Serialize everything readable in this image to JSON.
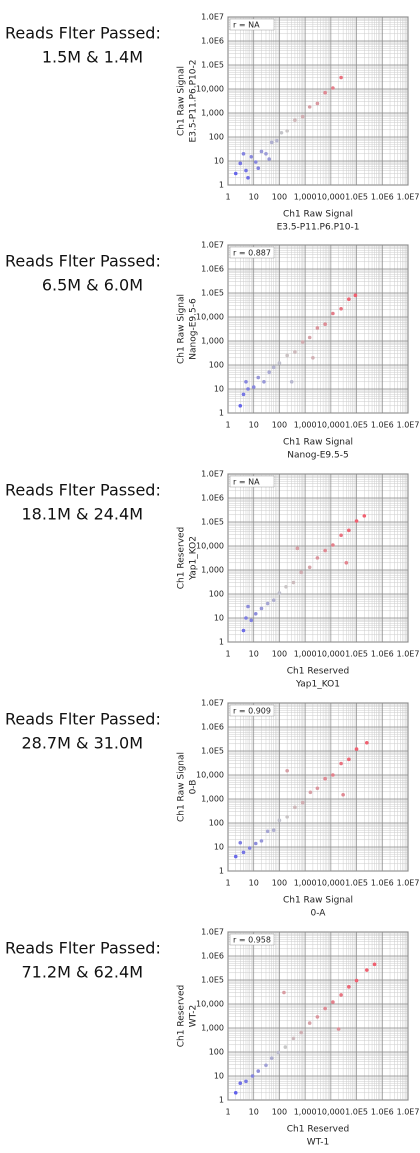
{
  "chart_data": [
    {
      "type": "scatter",
      "side_text": [
        "Reads Flter Passed:",
        "1.5M & 1.4M"
      ],
      "annotation": "r = NA",
      "xlabel": [
        "Ch1 Raw Signal",
        "E3.5-P11.P6.P10-1"
      ],
      "ylabel": [
        "Ch1 Raw Signal",
        "E3.5-P11.P6.P10-2"
      ],
      "xscale": "log",
      "yscale": "log",
      "xlim": [
        1,
        10000000
      ],
      "ylim": [
        1,
        10000000
      ],
      "xticks": [
        1,
        10,
        100,
        {
          "value": 1000,
          "label": "1,000"
        },
        {
          "value": 10000,
          "label": "10,000"
        },
        {
          "value": 100000,
          "label": "1.0E5"
        },
        {
          "value": 1000000,
          "label": "1.0E6"
        },
        {
          "value": 10000000,
          "label": "1.0E7"
        }
      ],
      "yticks": [
        1,
        10,
        100,
        {
          "value": 1000,
          "label": "1,000"
        },
        {
          "value": 10000,
          "label": "10,000"
        },
        {
          "value": 100000,
          "label": "1.0E5"
        },
        {
          "value": 1000000,
          "label": "1.0E6"
        },
        {
          "value": 10000000,
          "label": "1.0E7"
        }
      ],
      "colormap": [
        "#5050f0",
        "#c8c8c8",
        "#f06070"
      ],
      "grid": true,
      "x": [
        2,
        3,
        5,
        8,
        12,
        20,
        30,
        50,
        80,
        120,
        200,
        400,
        800,
        1500,
        3000,
        6000,
        12000,
        25000,
        4,
        15,
        6,
        40
      ],
      "y": [
        3,
        8,
        4,
        15,
        9,
        25,
        20,
        60,
        70,
        150,
        180,
        500,
        700,
        1800,
        2500,
        7000,
        11000,
        30000,
        20,
        5,
        2,
        12
      ]
    },
    {
      "type": "scatter",
      "side_text": [
        "Reads Flter Passed:",
        "6.5M & 6.0M"
      ],
      "annotation": "r = 0.887",
      "xlabel": [
        "Ch1 Raw Signal",
        "Nanog-E9.5-5"
      ],
      "ylabel": [
        "Ch1 Raw Signal",
        "Nanog-E9.5-6"
      ],
      "xscale": "log",
      "yscale": "log",
      "xlim": [
        1,
        10000000
      ],
      "ylim": [
        1,
        10000000
      ],
      "xticks": [
        1,
        10,
        100,
        {
          "value": 1000,
          "label": "1,000"
        },
        {
          "value": 10000,
          "label": "10,000"
        },
        {
          "value": 100000,
          "label": "1.0E5"
        },
        {
          "value": 1000000,
          "label": "1.0E6"
        },
        {
          "value": 10000000,
          "label": "1.0E7"
        }
      ],
      "yticks": [
        1,
        10,
        100,
        {
          "value": 1000,
          "label": "1,000"
        },
        {
          "value": 10000,
          "label": "10,000"
        },
        {
          "value": 100000,
          "label": "1.0E5"
        },
        {
          "value": 1000000,
          "label": "1.0E6"
        },
        {
          "value": 10000000,
          "label": "1.0E7"
        }
      ],
      "colormap": [
        "#5050f0",
        "#c8c8c8",
        "#f06070"
      ],
      "grid": true,
      "x": [
        3,
        4,
        6,
        10,
        15,
        25,
        40,
        60,
        100,
        200,
        400,
        800,
        1500,
        3000,
        6000,
        12000,
        25000,
        50000,
        90000,
        5,
        300,
        2000
      ],
      "y": [
        2,
        6,
        10,
        12,
        30,
        20,
        50,
        80,
        120,
        250,
        350,
        900,
        1400,
        3500,
        5000,
        14000,
        22000,
        55000,
        80000,
        20,
        20,
        200
      ]
    },
    {
      "type": "scatter",
      "side_text": [
        "Reads Flter Passed:",
        "18.1M & 24.4M"
      ],
      "annotation": "r = NA",
      "xlabel": [
        "Ch1 Reserved",
        "Yap1_KO1"
      ],
      "ylabel": [
        "Ch1 Reserved",
        "Yap1_KO2"
      ],
      "xscale": "log",
      "yscale": "log",
      "xlim": [
        1,
        10000000
      ],
      "ylim": [
        1,
        10000000
      ],
      "xticks": [
        1,
        10,
        100,
        {
          "value": 1000,
          "label": "1,000"
        },
        {
          "value": 10000,
          "label": "10,000"
        },
        {
          "value": 100000,
          "label": "1.0E5"
        },
        {
          "value": 1000000,
          "label": "1.0E6"
        },
        {
          "value": 10000000,
          "label": "1.0E7"
        }
      ],
      "yticks": [
        1,
        10,
        100,
        {
          "value": 1000,
          "label": "1,000"
        },
        {
          "value": 10000,
          "label": "10,000"
        },
        {
          "value": 100000,
          "label": "1.0E5"
        },
        {
          "value": 1000000,
          "label": "1.0E6"
        },
        {
          "value": 10000000,
          "label": "1.0E7"
        }
      ],
      "colormap": [
        "#5050f0",
        "#c8c8c8",
        "#f06070"
      ],
      "grid": true,
      "x": [
        4,
        5,
        8,
        12,
        20,
        35,
        60,
        100,
        180,
        350,
        700,
        1500,
        3000,
        6000,
        12000,
        25000,
        50000,
        100000,
        200000,
        6,
        500,
        40000
      ],
      "y": [
        3,
        10,
        8,
        15,
        25,
        40,
        55,
        110,
        200,
        300,
        800,
        1300,
        3200,
        6500,
        11000,
        28000,
        45000,
        110000,
        180000,
        30,
        8000,
        2000
      ]
    },
    {
      "type": "scatter",
      "side_text": [
        "Reads Flter Passed:",
        "28.7M & 31.0M"
      ],
      "annotation": "r = 0.909",
      "xlabel": [
        "Ch1 Raw Signal",
        "0-A"
      ],
      "ylabel": [
        "Ch1 Raw Signal",
        "0-B"
      ],
      "xscale": "log",
      "yscale": "log",
      "xlim": [
        1,
        10000000
      ],
      "ylim": [
        1,
        10000000
      ],
      "xticks": [
        1,
        10,
        100,
        {
          "value": 1000,
          "label": "1,000"
        },
        {
          "value": 10000,
          "label": "10,000"
        },
        {
          "value": 100000,
          "label": "1.0E5"
        },
        {
          "value": 1000000,
          "label": "1.0E6"
        },
        {
          "value": 10000000,
          "label": "1.0E7"
        }
      ],
      "yticks": [
        1,
        10,
        100,
        {
          "value": 1000,
          "label": "1,000"
        },
        {
          "value": 10000,
          "label": "10,000"
        },
        {
          "value": 100000,
          "label": "1.0E5"
        },
        {
          "value": 1000000,
          "label": "1.0E6"
        },
        {
          "value": 10000000,
          "label": "1.0E7"
        }
      ],
      "colormap": [
        "#5050f0",
        "#c8c8c8",
        "#f06070"
      ],
      "grid": true,
      "x": [
        2,
        4,
        7,
        12,
        20,
        35,
        60,
        100,
        200,
        400,
        800,
        1600,
        3000,
        6000,
        12000,
        25000,
        50000,
        100000,
        250000,
        3,
        200,
        30000
      ],
      "y": [
        4,
        6,
        9,
        14,
        18,
        45,
        50,
        130,
        180,
        450,
        700,
        1900,
        2800,
        7000,
        10000,
        30000,
        45000,
        120000,
        220000,
        15,
        15000,
        1500
      ]
    },
    {
      "type": "scatter",
      "side_text": [
        "Reads Flter Passed:",
        "71.2M & 62.4M"
      ],
      "annotation": "r = 0.958",
      "xlabel": [
        "Ch1 Reserved",
        "WT-1"
      ],
      "ylabel": [
        "Ch1 Reserved",
        "WT-2"
      ],
      "xscale": "log",
      "yscale": "log",
      "xlim": [
        1,
        10000000
      ],
      "ylim": [
        1,
        10000000
      ],
      "xticks": [
        1,
        10,
        100,
        {
          "value": 1000,
          "label": "1,000"
        },
        {
          "value": 10000,
          "label": "10,000"
        },
        {
          "value": 100000,
          "label": "1.0E5"
        },
        {
          "value": 1000000,
          "label": "1.0E6"
        },
        {
          "value": 10000000,
          "label": "1.0E7"
        }
      ],
      "yticks": [
        1,
        10,
        100,
        {
          "value": 1000,
          "label": "1,000"
        },
        {
          "value": 10000,
          "label": "10,000"
        },
        {
          "value": 100000,
          "label": "1.0E5"
        },
        {
          "value": 1000000,
          "label": "1.0E6"
        },
        {
          "value": 10000000,
          "label": "1.0E7"
        }
      ],
      "colormap": [
        "#5050f0",
        "#c8c8c8",
        "#f06070"
      ],
      "grid": true,
      "x": [
        2,
        3,
        5,
        9,
        15,
        30,
        50,
        90,
        170,
        350,
        700,
        1500,
        3000,
        6000,
        12000,
        25000,
        50000,
        100000,
        250000,
        500000,
        150,
        20000
      ],
      "y": [
        2,
        5,
        6,
        10,
        16,
        28,
        55,
        95,
        160,
        370,
        650,
        1600,
        2900,
        6500,
        12000,
        24000,
        52000,
        95000,
        260000,
        450000,
        30000,
        900
      ]
    }
  ]
}
